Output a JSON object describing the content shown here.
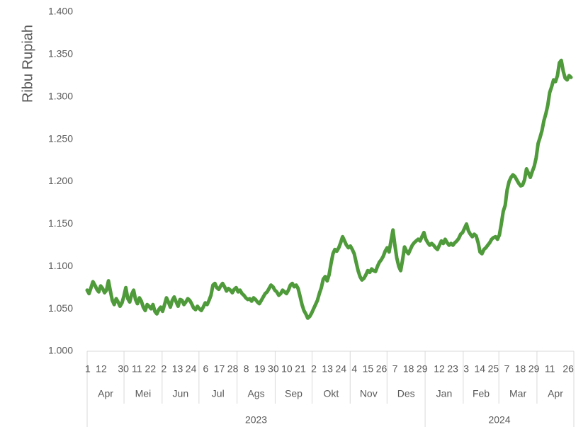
{
  "chart_data": {
    "type": "line",
    "title": "",
    "ylabel": "Ribu Rupiah",
    "ylim": [
      1.0,
      1.4
    ],
    "yticks": [
      "1.000",
      "1.050",
      "1.100",
      "1.150",
      "1.200",
      "1.250",
      "1.300",
      "1.350",
      "1.400"
    ],
    "line_color": "#4f9a3a",
    "grid": false,
    "day_tick_rows": [
      "1 1230 11 22 2 13 24 6 17 28 8 19 30 10 21 2 13 24 4 15 26 7 18 29 12 23 3 14 25 7 18 29 11 26"
    ],
    "months": [
      {
        "label": "Apr",
        "year": "2023"
      },
      {
        "label": "Mei",
        "year": "2023"
      },
      {
        "label": "Jun",
        "year": "2023"
      },
      {
        "label": "Jul",
        "year": "2023"
      },
      {
        "label": "Ags",
        "year": "2023"
      },
      {
        "label": "Sep",
        "year": "2023"
      },
      {
        "label": "Okt",
        "year": "2023"
      },
      {
        "label": "Nov",
        "year": "2023"
      },
      {
        "label": "Des",
        "year": "2023"
      },
      {
        "label": "Jan",
        "year": "2024"
      },
      {
        "label": "Feb",
        "year": "2024"
      },
      {
        "label": "Mar",
        "year": "2024"
      },
      {
        "label": "Apr",
        "year": "2024"
      }
    ],
    "day_labels": [
      {
        "text": "1",
        "month": 0
      },
      {
        "text": "12",
        "month": 0
      },
      {
        "text": "30",
        "month": 0
      },
      {
        "text": "11",
        "month": 1
      },
      {
        "text": "22",
        "month": 1
      },
      {
        "text": "2",
        "month": 2
      },
      {
        "text": "13",
        "month": 2
      },
      {
        "text": "24",
        "month": 2
      },
      {
        "text": "6",
        "month": 3
      },
      {
        "text": "17",
        "month": 3
      },
      {
        "text": "28",
        "month": 3
      },
      {
        "text": "8",
        "month": 4
      },
      {
        "text": "19",
        "month": 4
      },
      {
        "text": "30",
        "month": 4
      },
      {
        "text": "10",
        "month": 5
      },
      {
        "text": "21",
        "month": 5
      },
      {
        "text": "2",
        "month": 6
      },
      {
        "text": "13",
        "month": 6
      },
      {
        "text": "24",
        "month": 6
      },
      {
        "text": "4",
        "month": 7
      },
      {
        "text": "15",
        "month": 7
      },
      {
        "text": "26",
        "month": 7
      },
      {
        "text": "7",
        "month": 8
      },
      {
        "text": "18",
        "month": 8
      },
      {
        "text": "29",
        "month": 8
      },
      {
        "text": "12",
        "month": 9
      },
      {
        "text": "23",
        "month": 9
      },
      {
        "text": "3",
        "month": 10
      },
      {
        "text": "14",
        "month": 10
      },
      {
        "text": "25",
        "month": 10
      },
      {
        "text": "7",
        "month": 11
      },
      {
        "text": "18",
        "month": 11
      },
      {
        "text": "29",
        "month": 11
      },
      {
        "text": "11",
        "month": 12
      },
      {
        "text": "26",
        "month": 12
      }
    ],
    "years": [
      "2023",
      "2024"
    ],
    "series": [
      {
        "values": [
          1.072,
          1.068,
          1.075,
          1.082,
          1.078,
          1.073,
          1.07,
          1.077,
          1.074,
          1.069,
          1.072,
          1.083,
          1.071,
          1.06,
          1.055,
          1.062,
          1.058,
          1.053,
          1.057,
          1.065,
          1.075,
          1.062,
          1.058,
          1.067,
          1.072,
          1.061,
          1.056,
          1.063,
          1.059,
          1.052,
          1.048,
          1.055,
          1.053,
          1.05,
          1.055,
          1.047,
          1.044,
          1.049,
          1.052,
          1.047,
          1.055,
          1.063,
          1.058,
          1.052,
          1.06,
          1.064,
          1.058,
          1.053,
          1.061,
          1.06,
          1.055,
          1.058,
          1.062,
          1.06,
          1.056,
          1.051,
          1.049,
          1.053,
          1.05,
          1.048,
          1.052,
          1.057,
          1.055,
          1.06,
          1.066,
          1.078,
          1.08,
          1.075,
          1.073,
          1.077,
          1.08,
          1.076,
          1.071,
          1.074,
          1.072,
          1.069,
          1.073,
          1.075,
          1.07,
          1.072,
          1.068,
          1.066,
          1.063,
          1.061,
          1.062,
          1.059,
          1.063,
          1.061,
          1.058,
          1.056,
          1.06,
          1.064,
          1.068,
          1.07,
          1.074,
          1.078,
          1.076,
          1.072,
          1.07,
          1.066,
          1.068,
          1.072,
          1.07,
          1.068,
          1.072,
          1.078,
          1.08,
          1.076,
          1.078,
          1.074,
          1.065,
          1.055,
          1.048,
          1.044,
          1.039,
          1.041,
          1.045,
          1.05,
          1.055,
          1.06,
          1.068,
          1.075,
          1.085,
          1.088,
          1.083,
          1.09,
          1.103,
          1.115,
          1.12,
          1.118,
          1.122,
          1.128,
          1.135,
          1.13,
          1.125,
          1.122,
          1.124,
          1.12,
          1.115,
          1.105,
          1.095,
          1.088,
          1.084,
          1.086,
          1.09,
          1.095,
          1.093,
          1.097,
          1.095,
          1.094,
          1.1,
          1.105,
          1.108,
          1.112,
          1.118,
          1.122,
          1.117,
          1.13,
          1.143,
          1.125,
          1.11,
          1.1,
          1.095,
          1.108,
          1.123,
          1.118,
          1.115,
          1.12,
          1.125,
          1.128,
          1.13,
          1.132,
          1.13,
          1.135,
          1.14,
          1.132,
          1.128,
          1.125,
          1.127,
          1.125,
          1.122,
          1.12,
          1.125,
          1.13,
          1.127,
          1.132,
          1.128,
          1.125,
          1.127,
          1.125,
          1.128,
          1.13,
          1.133,
          1.138,
          1.14,
          1.145,
          1.15,
          1.142,
          1.138,
          1.135,
          1.138,
          1.136,
          1.128,
          1.117,
          1.115,
          1.12,
          1.122,
          1.125,
          1.128,
          1.132,
          1.134,
          1.135,
          1.132,
          1.137,
          1.15,
          1.165,
          1.172,
          1.19,
          1.2,
          1.205,
          1.208,
          1.206,
          1.202,
          1.198,
          1.195,
          1.196,
          1.202,
          1.215,
          1.21,
          1.205,
          1.212,
          1.218,
          1.228,
          1.245,
          1.252,
          1.26,
          1.272,
          1.28,
          1.29,
          1.305,
          1.312,
          1.32,
          1.318,
          1.325,
          1.34,
          1.343,
          1.33,
          1.322,
          1.32,
          1.325,
          1.323
        ]
      }
    ]
  }
}
